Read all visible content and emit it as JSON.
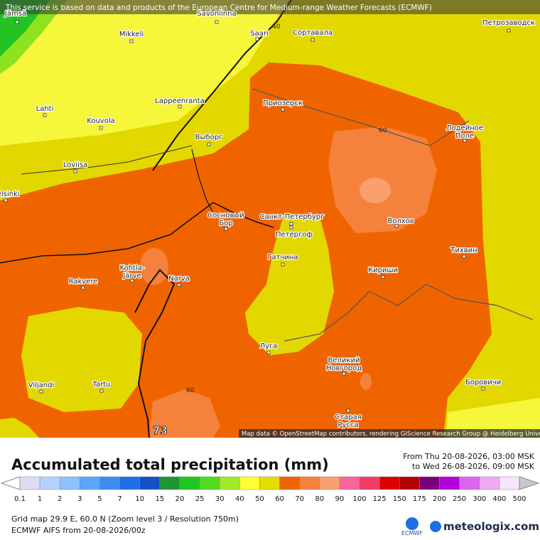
{
  "banner": "This service is based on data and products of the European Centre for Medium-range Weather Forecasts (ECMWF)",
  "attribution": "Map data © OpenStreetMap contributors, rendering GIScience Research Group @ Heidelberg University",
  "map": {
    "places": [
      {
        "lines": [
          "Jämsä"
        ]
      },
      {
        "lines": [
          "Savonlinna"
        ]
      },
      {
        "lines": [
          "Mikkeli"
        ]
      },
      {
        "lines": [
          "Saari"
        ]
      },
      {
        "lines": [
          "Сортавала"
        ]
      },
      {
        "lines": [
          "Петрозаводск"
        ]
      },
      {
        "lines": [
          "Lahti"
        ]
      },
      {
        "lines": [
          "Lappeenranta"
        ]
      },
      {
        "lines": [
          "Приозерск"
        ]
      },
      {
        "lines": [
          "Kouvola"
        ]
      },
      {
        "lines": [
          "Выборг"
        ]
      },
      {
        "lines": [
          "Лодейное",
          "Поле"
        ]
      },
      {
        "lines": [
          "Loviisa"
        ]
      },
      {
        "lines": [
          "Helsinki"
        ]
      },
      {
        "lines": [
          "Сосновый",
          "Бор"
        ]
      },
      {
        "lines": [
          "Санкт-Петербург"
        ]
      },
      {
        "lines": [
          "Петергоф"
        ]
      },
      {
        "lines": [
          "Волхов"
        ]
      },
      {
        "lines": [
          "Тихвин"
        ]
      },
      {
        "lines": [
          "Гатчина"
        ]
      },
      {
        "lines": [
          "Kohtla-",
          "Järve"
        ]
      },
      {
        "lines": [
          "Кириши"
        ]
      },
      {
        "lines": [
          "Rakvere"
        ]
      },
      {
        "lines": [
          "Narva"
        ]
      },
      {
        "lines": [
          "Луга"
        ]
      },
      {
        "lines": [
          "Великий",
          "Новгород"
        ]
      },
      {
        "lines": [
          "Viljandi"
        ]
      },
      {
        "lines": [
          "Tartu"
        ]
      },
      {
        "lines": [
          "Боровичи"
        ]
      },
      {
        "lines": [
          "Старая",
          "Русса"
        ]
      }
    ],
    "contour_labels": [
      "40",
      "60",
      "60"
    ],
    "max_label": "73"
  },
  "panel": {
    "title": "Accumulated total precipitation (mm)",
    "from": "From Thu 20-08-2026, 03:00 MSK",
    "to": "to Wed 26-08-2026, 09:00 MSK",
    "grid": "Grid map 29.9 E, 60.0 N (Zoom level 3 / Resolution 750m)",
    "model": "ECMWF AIFS from  20-08-2026/00z",
    "logo_left": "ECMWF",
    "logo_right": "meteologix.com"
  },
  "legend": {
    "labels": [
      "0.1",
      "1",
      "2",
      "3",
      "5",
      "7",
      "10",
      "15",
      "20",
      "25",
      "30",
      "40",
      "50",
      "60",
      "70",
      "80",
      "90",
      "100",
      "125",
      "150",
      "175",
      "200",
      "250",
      "300",
      "400",
      "500"
    ],
    "colors": [
      "#dcdcf5",
      "#b4d2ff",
      "#8cc0ff",
      "#5aa5ff",
      "#3c8cf0",
      "#1e6ee6",
      "#1450c8",
      "#1e9632",
      "#1ec81e",
      "#50dc1e",
      "#a0eb28",
      "#ffff32",
      "#e6dc00",
      "#f06400",
      "#f5823c",
      "#faa06e",
      "#fa6496",
      "#f03c64",
      "#dc0000",
      "#b40000",
      "#780078",
      "#b400dc",
      "#dc64f0",
      "#f0aaf5",
      "#f5e6fa"
    ],
    "low_color": "#ffffff",
    "high_color": "#c8c8c8"
  }
}
